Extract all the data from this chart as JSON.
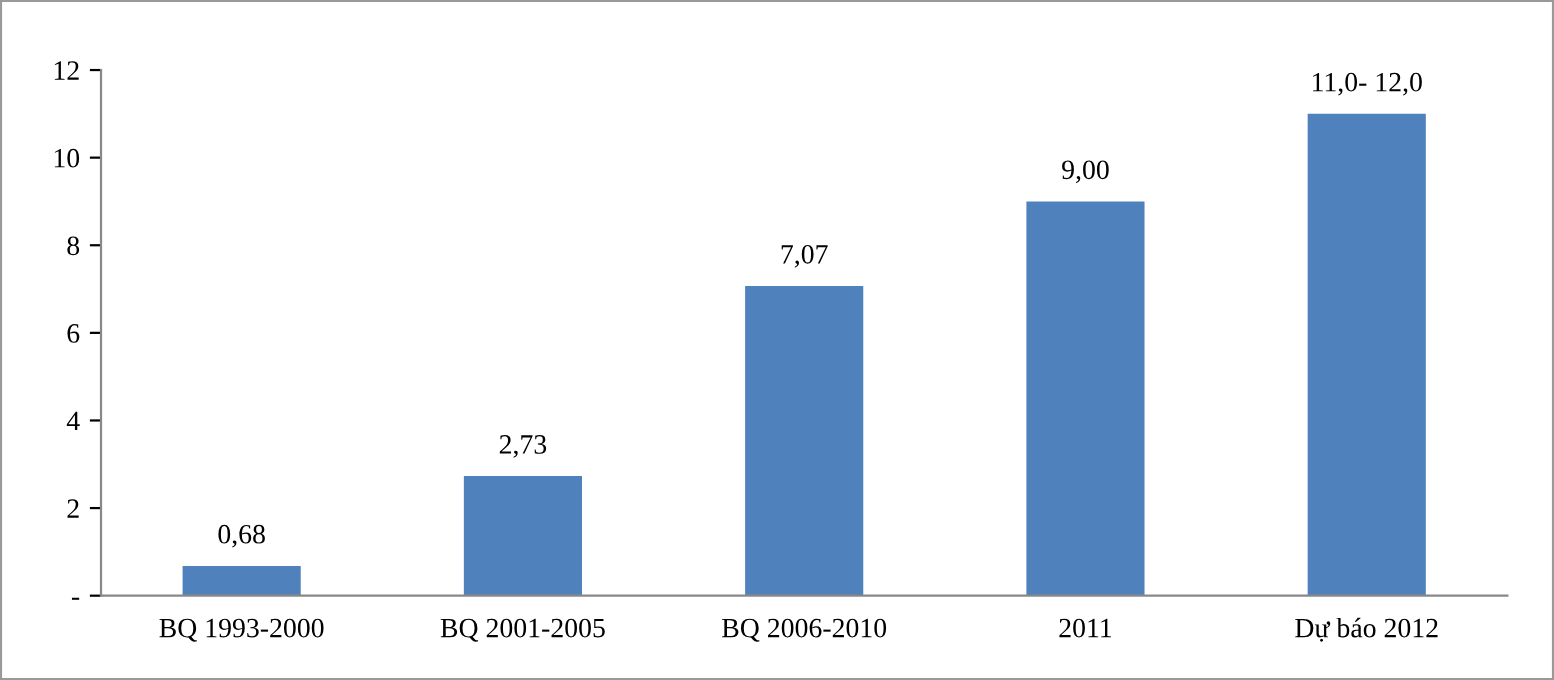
{
  "chart_data": {
    "type": "bar",
    "categories": [
      "BQ 1993-2000",
      "BQ 2001-2005",
      "BQ 2006-2010",
      "2011",
      "Dự báo 2012"
    ],
    "values": [
      0.68,
      2.73,
      7.07,
      9.0,
      11.0
    ],
    "value_labels": [
      "0,68",
      "2,73",
      "7,07",
      "9,00",
      "11,0- 12,0"
    ],
    "color": "#4f81bd",
    "ylim": [
      0,
      12
    ],
    "yticks": [
      {
        "value": 0,
        "label": "-"
      },
      2,
      4,
      6,
      8,
      10,
      12
    ],
    "grid": false
  }
}
